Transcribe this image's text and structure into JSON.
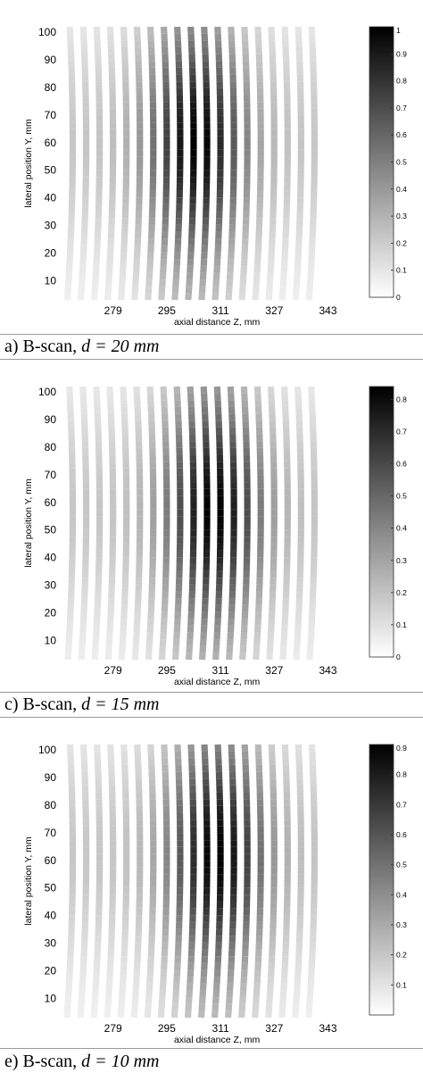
{
  "figure": {
    "panels": [
      {
        "caption_prefix": "a) B-scan, ",
        "caption_var": "d",
        "caption_eq": " = ",
        "caption_value": "20 mm",
        "colorbar_ticks": [
          "1",
          "0.9",
          "0.8",
          "0.7",
          "0.6",
          "0.5",
          "0.4",
          "0.3",
          "0.2",
          "0.1",
          "0"
        ],
        "colorbar_max": 1.0
      },
      {
        "caption_prefix": "c) B-scan, ",
        "caption_var": "d",
        "caption_eq": " = ",
        "caption_value": "15 mm",
        "colorbar_ticks": [
          "0.8",
          "0.7",
          "0.6",
          "0.5",
          "0.4",
          "0.3",
          "0.2",
          "0.1",
          "0"
        ],
        "colorbar_max": 0.84
      },
      {
        "caption_prefix": "e) B-scan, ",
        "caption_var": "d",
        "caption_eq": " = ",
        "caption_value": "10 mm",
        "colorbar_ticks": [
          "0.9",
          "0.8",
          "0.7",
          "0.6",
          "0.5",
          "0.4",
          "0.3",
          "0.2",
          "0.1"
        ],
        "colorbar_max": 0.9
      }
    ]
  },
  "chart_data": [
    {
      "type": "heatmap",
      "title": "",
      "xlabel": "axial distance Z, mm",
      "ylabel": "lateral position Y, mm",
      "x_ticks": [
        279,
        295,
        311,
        327,
        343
      ],
      "y_ticks": [
        10,
        20,
        30,
        40,
        50,
        60,
        70,
        80,
        90,
        100
      ],
      "xlim": [
        265,
        345
      ],
      "ylim": [
        3,
        102
      ],
      "colorbar": {
        "min": 0,
        "max": 1,
        "colormap": "gray_reversed"
      },
      "stripes": {
        "z_first": 267,
        "z_spacing": 4,
        "count": 19
      },
      "peak": {
        "z": 304,
        "y": 60,
        "value": 1.0
      },
      "grid": false
    },
    {
      "type": "heatmap",
      "title": "",
      "xlabel": "axial distance Z, mm",
      "ylabel": "lateral position Y, mm",
      "x_ticks": [
        279,
        295,
        311,
        327,
        343
      ],
      "y_ticks": [
        10,
        20,
        30,
        40,
        50,
        60,
        70,
        80,
        90,
        100
      ],
      "xlim": [
        265,
        345
      ],
      "ylim": [
        3,
        102
      ],
      "colorbar": {
        "min": 0,
        "max": 0.84,
        "colormap": "gray_reversed"
      },
      "stripes": {
        "z_first": 267,
        "z_spacing": 4,
        "count": 19
      },
      "peak": {
        "z": 309,
        "y": 57,
        "value": 0.84
      },
      "grid": false
    },
    {
      "type": "heatmap",
      "title": "",
      "xlabel": "axial distance Z, mm",
      "ylabel": "lateral position Y, mm",
      "x_ticks": [
        279,
        295,
        311,
        327,
        343
      ],
      "y_ticks": [
        10,
        20,
        30,
        40,
        50,
        60,
        70,
        80,
        90,
        100
      ],
      "xlim": [
        265,
        345
      ],
      "ylim": [
        3,
        102
      ],
      "colorbar": {
        "min": 0,
        "max": 0.9,
        "colormap": "gray_reversed"
      },
      "stripes": {
        "z_first": 267,
        "z_spacing": 4,
        "count": 19
      },
      "peak": {
        "z": 310,
        "y": 62,
        "value": 0.9
      },
      "grid": false
    }
  ]
}
